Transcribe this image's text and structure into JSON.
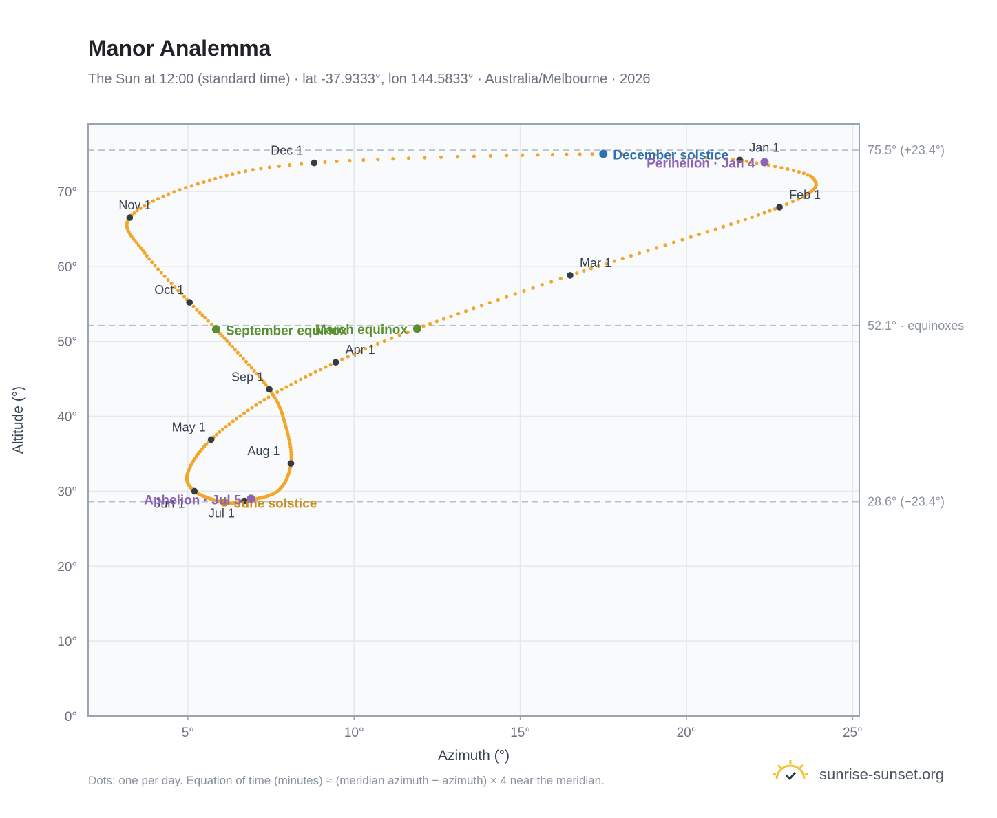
{
  "header": {
    "title": "Manor Analemma",
    "subtitle": "The Sun at 12:00 (standard time) · lat -37.9333°, lon 144.5833° · Australia/Melbourne · 2026"
  },
  "footer": {
    "note": "Dots: one per day. Equation of time (minutes) ≈ (meridian azimuth − azimuth) × 4 near the meridian.",
    "brand": "sunrise-sunset.org",
    "brand_icon": "sun-check-icon"
  },
  "colors": {
    "path": "#f2a62a",
    "marker": "#333b45",
    "solstice_june": "#c8901e",
    "solstice_december": "#2f6fb5",
    "equinox": "#5a8f30",
    "apsis": "#8e63b5",
    "ref_line": "#b8c0c8",
    "plot_bg": "#f8fafc",
    "grid": "#e3e8ee",
    "frame": "#9aa5b1"
  },
  "chart_data": {
    "type": "scatter",
    "xlabel": "Azimuth (°)",
    "ylabel": "Altitude (°)",
    "xlim": [
      2,
      25.2
    ],
    "ylim": [
      0,
      79
    ],
    "grid": true,
    "x_ticks": [
      5,
      10,
      15,
      20,
      25
    ],
    "x_tick_labels": [
      "5°",
      "10°",
      "15°",
      "20°",
      "25°"
    ],
    "y_ticks": [
      0,
      10,
      20,
      30,
      40,
      50,
      60,
      70
    ],
    "y_tick_labels": [
      "0°",
      "10°",
      "20°",
      "30°",
      "40°",
      "50°",
      "60°",
      "70°"
    ],
    "path_anchors": [
      {
        "day": 1,
        "az": 21.6,
        "alt": 74.2
      },
      {
        "day": 16,
        "az": 23.8,
        "alt": 71.8
      },
      {
        "day": 32,
        "az": 22.8,
        "alt": 67.9
      },
      {
        "day": 60,
        "az": 16.5,
        "alt": 58.8
      },
      {
        "day": 79,
        "az": 11.9,
        "alt": 51.7
      },
      {
        "day": 91,
        "az": 9.45,
        "alt": 47.2
      },
      {
        "day": 106,
        "az": 7.3,
        "alt": 42.2
      },
      {
        "day": 121,
        "az": 5.7,
        "alt": 36.9
      },
      {
        "day": 136,
        "az": 5.0,
        "alt": 32.5
      },
      {
        "day": 152,
        "az": 5.2,
        "alt": 30.0
      },
      {
        "day": 172,
        "az": 6.1,
        "alt": 28.5
      },
      {
        "day": 182,
        "az": 6.7,
        "alt": 28.7
      },
      {
        "day": 198,
        "az": 7.7,
        "alt": 30.0
      },
      {
        "day": 213,
        "az": 8.1,
        "alt": 33.7
      },
      {
        "day": 228,
        "az": 7.95,
        "alt": 38.6
      },
      {
        "day": 244,
        "az": 7.45,
        "alt": 43.6
      },
      {
        "day": 266,
        "az": 5.85,
        "alt": 51.6
      },
      {
        "day": 274,
        "az": 5.05,
        "alt": 55.2
      },
      {
        "day": 289,
        "az": 3.7,
        "alt": 61.8
      },
      {
        "day": 305,
        "az": 3.25,
        "alt": 66.5
      },
      {
        "day": 320,
        "az": 5.3,
        "alt": 71.0
      },
      {
        "day": 335,
        "az": 8.8,
        "alt": 73.8
      },
      {
        "day": 355,
        "az": 17.5,
        "alt": 75.0
      },
      {
        "day": 366,
        "az": 21.6,
        "alt": 74.2
      }
    ],
    "month_markers": [
      {
        "label": "Jan 1",
        "az": 21.6,
        "alt": 74.2
      },
      {
        "label": "Feb 1",
        "az": 22.8,
        "alt": 67.9
      },
      {
        "label": "Mar 1",
        "az": 16.5,
        "alt": 58.8
      },
      {
        "label": "Apr 1",
        "az": 9.45,
        "alt": 47.2
      },
      {
        "label": "May 1",
        "az": 5.7,
        "alt": 36.9
      },
      {
        "label": "Jun 1",
        "az": 5.2,
        "alt": 30.0
      },
      {
        "label": "Jul 1",
        "az": 6.7,
        "alt": 28.7
      },
      {
        "label": "Aug 1",
        "az": 8.1,
        "alt": 33.7
      },
      {
        "label": "Sep 1",
        "az": 7.45,
        "alt": 43.6
      },
      {
        "label": "Oct 1",
        "az": 5.05,
        "alt": 55.2
      },
      {
        "label": "Nov 1",
        "az": 3.25,
        "alt": 66.5
      },
      {
        "label": "Dec 1",
        "az": 8.8,
        "alt": 73.8
      }
    ],
    "events": [
      {
        "label": "December solstice",
        "az": 17.5,
        "alt": 75.0,
        "color": "#2f6fb5",
        "anchor": "start"
      },
      {
        "label": "Perihelion · Jan 4",
        "az": 22.35,
        "alt": 73.9,
        "color": "#8e63b5",
        "anchor": "end"
      },
      {
        "label": "March equinox",
        "az": 11.9,
        "alt": 51.7,
        "color": "#5a8f30",
        "anchor": "end"
      },
      {
        "label": "September equinox",
        "az": 5.85,
        "alt": 51.6,
        "color": "#5a8f30",
        "anchor": "start"
      },
      {
        "label": "June solstice",
        "az": 6.1,
        "alt": 28.5,
        "color": "#c8901e",
        "anchor": "start"
      },
      {
        "label": "Aphelion · Jul 5",
        "az": 6.9,
        "alt": 29.0,
        "color": "#8e63b5",
        "anchor": "end"
      }
    ],
    "reference_lines": [
      {
        "alt": 75.5,
        "label": "75.5° (+23.4°)"
      },
      {
        "alt": 52.1,
        "label": "52.1° · equinoxes"
      },
      {
        "alt": 28.6,
        "label": "28.6° (−23.4°)"
      }
    ]
  }
}
